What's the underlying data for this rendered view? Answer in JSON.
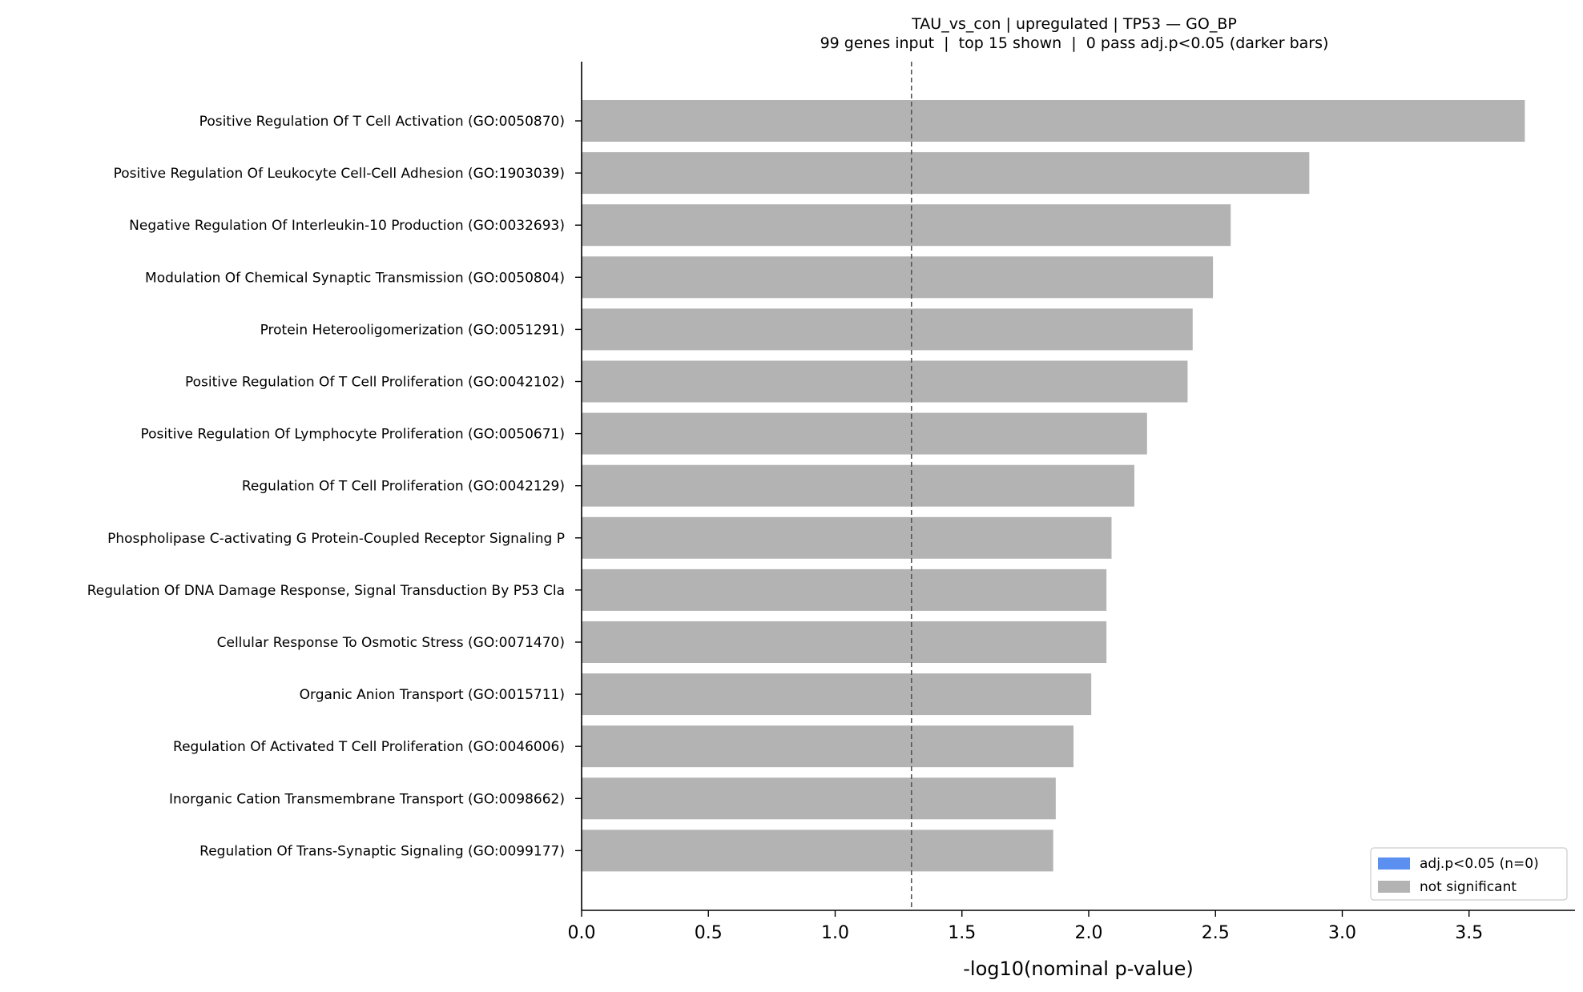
{
  "chart_data": {
    "type": "bar",
    "orientation": "horizontal",
    "title": "TAU_vs_con | upregulated | TP53 — GO_BP",
    "subtitle": "99 genes input  |  top 15 shown  |  0 pass adj.p<0.05 (darker bars)",
    "xlabel": "-log10(nominal p-value)",
    "ylabel": "",
    "xlim": [
      0,
      3.9
    ],
    "xticks": [
      "0.0",
      "0.5",
      "1.0",
      "1.5",
      "2.0",
      "2.5",
      "3.0",
      "3.5"
    ],
    "threshold_line": 1.301,
    "categories": [
      "Positive Regulation Of T Cell Activation (GO:0050870)",
      "Positive Regulation Of Leukocyte Cell-Cell Adhesion (GO:1903039)",
      "Negative Regulation Of Interleukin-10 Production (GO:0032693)",
      "Modulation Of Chemical Synaptic Transmission (GO:0050804)",
      "Protein Heterooligomerization (GO:0051291)",
      "Positive Regulation Of T Cell Proliferation (GO:0042102)",
      "Positive Regulation Of Lymphocyte Proliferation (GO:0050671)",
      "Regulation Of T Cell Proliferation (GO:0042129)",
      "Phospholipase C-activating G Protein-Coupled Receptor Signaling P",
      "Regulation Of DNA Damage Response, Signal Transduction By P53 Cla",
      "Cellular Response To Osmotic Stress (GO:0071470)",
      "Organic Anion Transport (GO:0015711)",
      "Regulation Of Activated T Cell Proliferation (GO:0046006)",
      "Inorganic Cation Transmembrane Transport (GO:0098662)",
      "Regulation Of Trans-Synaptic Signaling (GO:0099177)"
    ],
    "values": [
      3.72,
      2.87,
      2.56,
      2.49,
      2.41,
      2.39,
      2.23,
      2.18,
      2.09,
      2.07,
      2.07,
      2.01,
      1.94,
      1.87,
      1.86
    ],
    "significant": [
      false,
      false,
      false,
      false,
      false,
      false,
      false,
      false,
      false,
      false,
      false,
      false,
      false,
      false,
      false
    ],
    "colors": {
      "significant": "#5b8ff0",
      "not_significant": "#b3b3b3"
    },
    "legend": {
      "position": "lower-right",
      "entries": [
        {
          "label": "adj.p<0.05 (n=0)",
          "color": "#5b8ff0"
        },
        {
          "label": "not significant",
          "color": "#b3b3b3"
        }
      ]
    },
    "grid": false
  }
}
